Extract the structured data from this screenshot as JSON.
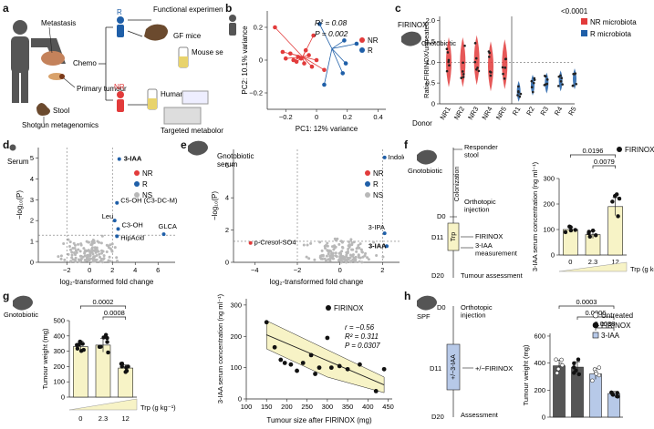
{
  "panel_labels": [
    "a",
    "b",
    "c",
    "d",
    "e",
    "f",
    "g",
    "h"
  ],
  "colors": {
    "nr": "#e23b3b",
    "r": "#1f5fa8",
    "ns": "#b8b8b8",
    "yellow_fill": "#f7f3c6",
    "dark_bar": "#555555",
    "light_blue": "#b7c9e8"
  },
  "panel_a": {
    "metastasis": "Metastasis",
    "primary_tumour": "Primary\ntumour",
    "stool": "Stool",
    "shotgun": "Shotgun\nmetagenomics",
    "chemo": "Chemo",
    "r": "R",
    "nr": "NR",
    "functional": "Functional experiments",
    "gf_mice": "GF mice",
    "mouse_serum": "Mouse\nserum",
    "human_serum": "Human\nserum",
    "targeted": "Targeted\nmetabolomic screen"
  },
  "panel_b": {
    "stat_r2": "R² = 0.08",
    "stat_p": "P = 0.002",
    "legend": [
      "NR",
      "R"
    ]
  },
  "panel_c": {
    "title": "FIRINOX",
    "gnotobiotic": "Gnotobiotic",
    "sig": "<0.0001",
    "donor": "Donor",
    "legend": [
      "NR microbiota",
      "R microbiota"
    ]
  },
  "panel_d": {
    "serum": "Serum",
    "legend": [
      "NR",
      "R",
      "NS"
    ],
    "labels": [
      "3-IAA",
      "C5-OH (C3-DC-M)",
      "Leu",
      "C3-OH",
      "HipAcid",
      "GLCA"
    ]
  },
  "panel_e": {
    "header": "Gnotobiotic\nserum",
    "legend": [
      "NR",
      "R",
      "NS"
    ],
    "labels": [
      "Indole",
      "p-Cresol-SO4",
      "3-IPA",
      "3-IAA"
    ]
  },
  "panel_f": {
    "gnotobiotic": "Gnotobiotic",
    "responder": "Responder\nstool",
    "colonization": "Colonization",
    "orthotopic": "Orthotopic\ninjection",
    "trp": "Trp",
    "firinox": "FIRINOX",
    "measure": "3-IAA\nmeasurement",
    "tumour_assess": "Tumour assessment",
    "days": [
      "D0",
      "D11",
      "D20"
    ],
    "pvals": [
      "0.0196",
      "0.0079"
    ],
    "legend": "FIRINOX",
    "xlabel": "Trp (g kg⁻¹)"
  },
  "panel_g": {
    "gnotobiotic": "Gnotobiotic",
    "pvals": [
      "0.0002",
      "0.0008"
    ],
    "xlabel": "Trp (g kg⁻¹)",
    "legend": "FIRINOX",
    "stats": [
      "r = −0.56",
      "R² = 0.311",
      "P = 0.0307"
    ]
  },
  "panel_h": {
    "spf": "SPF",
    "d0": "D0",
    "ortho": "Orthotopic\ninjection",
    "d11": "D11",
    "iaa": "+/−3-IAA",
    "firinox": "+/−FIRINOX",
    "d20": "D20",
    "assessment": "Assessment",
    "pvals": [
      "0.0003",
      "0.0006",
      "0.0038"
    ],
    "legend": [
      "Untreated",
      "FIRINOX",
      "3-IAA"
    ]
  },
  "chart_data": [
    {
      "type": "scatter",
      "panel": "b",
      "xlabel": "PC1: 12% variance",
      "ylabel": "PC2: 10.1% variance",
      "xticks": [
        "−0.2",
        "0",
        "0.2",
        "0.4"
      ],
      "yticks": [
        "−0.2",
        "0",
        "0.2"
      ],
      "xlim": [
        -0.32,
        0.45
      ],
      "ylim": [
        -0.3,
        0.3
      ],
      "series": [
        {
          "name": "NR",
          "centroid": [
            -0.09,
            0.02
          ],
          "points": [
            [
              -0.27,
              0.2
            ],
            [
              -0.22,
              0.05
            ],
            [
              -0.2,
              0.01
            ],
            [
              -0.17,
              0.04
            ],
            [
              -0.15,
              0.0
            ],
            [
              -0.13,
              -0.01
            ],
            [
              -0.12,
              0.02
            ],
            [
              -0.1,
              0.01
            ],
            [
              -0.08,
              -0.02
            ],
            [
              -0.07,
              0.06
            ],
            [
              -0.05,
              0.03
            ],
            [
              -0.03,
              -0.04
            ],
            [
              -0.02,
              0.15
            ],
            [
              0.05,
              -0.06
            ],
            [
              0.0,
              0.0
            ]
          ]
        },
        {
          "name": "R",
          "centroid": [
            0.1,
            0.07
          ],
          "points": [
            [
              0.02,
              0.22
            ],
            [
              0.18,
              0.12
            ],
            [
              0.19,
              -0.02
            ],
            [
              0.26,
              0.1
            ],
            [
              0.05,
              -0.15
            ],
            [
              0.17,
              -0.08
            ]
          ]
        }
      ]
    },
    {
      "type": "violin",
      "panel": "c",
      "ylabel": "Ratio FIRINOX/untreated",
      "yticks": [
        "0",
        "0.5",
        "1.0",
        "1.5",
        "2.0"
      ],
      "ylim": [
        0,
        2.1
      ],
      "categories": [
        "NR1",
        "NR2",
        "NR3",
        "NR4",
        "NR5",
        "R1",
        "R2",
        "R3",
        "R4",
        "R5"
      ],
      "medians": [
        1.0,
        1.0,
        1.05,
        0.9,
        0.95,
        0.3,
        0.45,
        0.5,
        0.55,
        0.6
      ]
    },
    {
      "type": "scatter",
      "panel": "d",
      "xlabel": "log₂-transformed fold change",
      "ylabel": "−log₁₀(P)",
      "xticks": [
        "−2",
        "0",
        "2",
        "4",
        "6"
      ],
      "yticks": [
        "0",
        "1",
        "2",
        "3",
        "4",
        "5"
      ],
      "xlim": [
        -4.5,
        7.5
      ],
      "ylim": [
        0,
        5.5
      ],
      "highlights": [
        {
          "label": "3-IAA",
          "x": 2.6,
          "y": 4.95,
          "group": "R"
        },
        {
          "label": "C5-OH (C3-DC-M)",
          "x": 2.4,
          "y": 2.85,
          "group": "R"
        },
        {
          "label": "Leu",
          "x": 2.2,
          "y": 2.0,
          "group": "R"
        },
        {
          "label": "C3-OH",
          "x": 2.5,
          "y": 1.6,
          "group": "R"
        },
        {
          "label": "HipAcid",
          "x": 2.4,
          "y": 1.25,
          "group": "R"
        },
        {
          "label": "GLCA",
          "x": 6.5,
          "y": 1.35,
          "group": "R"
        }
      ]
    },
    {
      "type": "scatter",
      "panel": "e",
      "xlabel": "log₂-transformed fold change",
      "ylabel": "−log₁₀(P)",
      "xticks": [
        "−4",
        "−2",
        "0",
        "2"
      ],
      "yticks": [
        "0",
        "2",
        "4",
        "6"
      ],
      "xlim": [
        -5,
        2.8
      ],
      "ylim": [
        0,
        7
      ],
      "highlights": [
        {
          "label": "Indole",
          "x": 2.1,
          "y": 6.5,
          "group": "R"
        },
        {
          "label": "p-Cresol-SO4",
          "x": -4.2,
          "y": 1.2,
          "group": "NR"
        },
        {
          "label": "3-IPA",
          "x": 2.1,
          "y": 1.8,
          "group": "R"
        },
        {
          "label": "3-IAA",
          "x": 2.2,
          "y": 1.0,
          "group": "R"
        }
      ]
    },
    {
      "type": "bar",
      "panel": "f",
      "ylabel": "3-IAA serum concentration (ng ml⁻¹)",
      "yticks": [
        "0",
        "100",
        "200",
        "300"
      ],
      "ylim": [
        0,
        300
      ],
      "categories": [
        "0",
        "2.3",
        "12"
      ],
      "values": [
        100,
        80,
        190
      ],
      "errors": [
        10,
        15,
        35
      ]
    },
    {
      "type": "bar",
      "panel": "g",
      "ylabel": "Tumour weight (mg)",
      "yticks": [
        "0",
        "100",
        "200",
        "300",
        "400",
        "500"
      ],
      "ylim": [
        0,
        500
      ],
      "categories": [
        "0",
        "2.3",
        "12"
      ],
      "values": [
        330,
        340,
        190
      ],
      "errors": [
        35,
        45,
        20
      ]
    },
    {
      "type": "scatter",
      "panel": "g2",
      "xlabel": "Tumour size after FIRINOX (mg)",
      "ylabel": "3-IAA serum concentration (ng ml⁻¹)",
      "xticks": [
        "100",
        "150",
        "200",
        "250",
        "300",
        "350",
        "400",
        "450"
      ],
      "yticks": [
        "0",
        "100",
        "200",
        "300"
      ],
      "xlim": [
        100,
        460
      ],
      "ylim": [
        0,
        320
      ],
      "points": [
        [
          150,
          245
        ],
        [
          170,
          165
        ],
        [
          185,
          125
        ],
        [
          195,
          115
        ],
        [
          210,
          110
        ],
        [
          225,
          90
        ],
        [
          240,
          115
        ],
        [
          260,
          140
        ],
        [
          270,
          80
        ],
        [
          280,
          100
        ],
        [
          300,
          195
        ],
        [
          310,
          100
        ],
        [
          330,
          105
        ],
        [
          350,
          95
        ],
        [
          380,
          110
        ],
        [
          420,
          25
        ],
        [
          440,
          95
        ]
      ]
    },
    {
      "type": "bar",
      "panel": "h",
      "ylabel": "Tumour weight (mg)",
      "yticks": [
        "0",
        "200",
        "400",
        "600"
      ],
      "ylim": [
        0,
        620
      ],
      "categories": [
        "Untreated",
        "FIRINOX",
        "3-IAA",
        "FIRINOX+3-IAA"
      ],
      "values": [
        380,
        370,
        320,
        175
      ],
      "errors": [
        40,
        40,
        40,
        15
      ]
    }
  ]
}
